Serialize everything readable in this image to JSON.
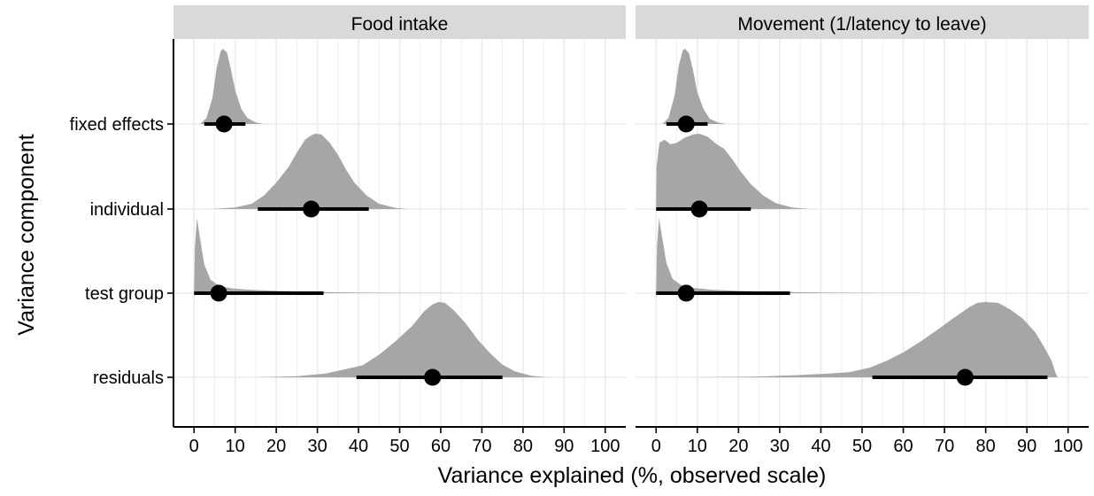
{
  "chart_data": {
    "type": "ridgeline",
    "xlabel": "Variance explained (%, observed scale)",
    "ylabel": "Variance component",
    "xlim": [
      -5,
      105
    ],
    "x_ticks": [
      0,
      10,
      20,
      30,
      40,
      50,
      60,
      70,
      80,
      90,
      100
    ],
    "x_tick_labels": [
      "0",
      "10",
      "20",
      "30",
      "40",
      "50",
      "60",
      "70",
      "80",
      "90",
      "100"
    ],
    "categories": [
      "fixed effects",
      "individual",
      "test group",
      "residuals"
    ],
    "grid": true,
    "colors": {
      "density": "#a6a6a6",
      "strip": "#d9d9d9",
      "point": "#000000",
      "grid": "#ebebeb"
    },
    "panels": [
      {
        "title": "Food intake",
        "components": [
          {
            "name": "fixed effects",
            "estimate": 7.3,
            "ci": [
              2.5,
              12.5
            ],
            "density": [
              [
                1.5,
                0
              ],
              [
                3,
                0.08
              ],
              [
                4.5,
                0.35
              ],
              [
                5.5,
                0.75
              ],
              [
                6.5,
                0.97
              ],
              [
                7,
                1
              ],
              [
                8,
                0.95
              ],
              [
                9,
                0.72
              ],
              [
                10,
                0.45
              ],
              [
                11.5,
                0.2
              ],
              [
                13,
                0.08
              ],
              [
                15,
                0.02
              ],
              [
                17,
                0
              ]
            ]
          },
          {
            "name": "individual",
            "estimate": 28.5,
            "ci": [
              15.5,
              42.5
            ],
            "density": [
              [
                4,
                0
              ],
              [
                10,
                0.02
              ],
              [
                14,
                0.07
              ],
              [
                17,
                0.18
              ],
              [
                20,
                0.35
              ],
              [
                23,
                0.56
              ],
              [
                25,
                0.75
              ],
              [
                27,
                0.92
              ],
              [
                28.5,
                0.98
              ],
              [
                29.5,
                1
              ],
              [
                31,
                0.99
              ],
              [
                33,
                0.88
              ],
              [
                35,
                0.72
              ],
              [
                37,
                0.52
              ],
              [
                39,
                0.35
              ],
              [
                42,
                0.18
              ],
              [
                45,
                0.07
              ],
              [
                49,
                0.015
              ],
              [
                52,
                0
              ]
            ]
          },
          {
            "name": "test group",
            "estimate": 6,
            "ci": [
              0,
              31.5
            ],
            "density": [
              [
                0,
                0
              ],
              [
                0.2,
                0.6
              ],
              [
                0.7,
                1
              ],
              [
                1.3,
                0.78
              ],
              [
                2.5,
                0.38
              ],
              [
                4,
                0.18
              ],
              [
                6,
                0.1
              ],
              [
                9,
                0.065
              ],
              [
                14,
                0.045
              ],
              [
                20,
                0.03
              ],
              [
                30,
                0.015
              ],
              [
                40,
                0.007
              ],
              [
                55,
                0.003
              ],
              [
                65,
                0
              ]
            ]
          },
          {
            "name": "residuals",
            "estimate": 58,
            "ci": [
              39.5,
              75
            ],
            "density": [
              [
                15,
                0
              ],
              [
                25,
                0.015
              ],
              [
                32,
                0.05
              ],
              [
                37,
                0.11
              ],
              [
                41,
                0.16
              ],
              [
                45,
                0.3
              ],
              [
                49,
                0.48
              ],
              [
                53,
                0.68
              ],
              [
                56,
                0.88
              ],
              [
                58,
                0.97
              ],
              [
                59.5,
                1
              ],
              [
                61,
                0.99
              ],
              [
                63,
                0.9
              ],
              [
                66,
                0.72
              ],
              [
                69,
                0.5
              ],
              [
                72,
                0.32
              ],
              [
                75,
                0.17
              ],
              [
                78,
                0.08
              ],
              [
                82,
                0.02
              ],
              [
                86,
                0
              ]
            ]
          }
        ]
      },
      {
        "title": "Movement (1/latency to leave)",
        "components": [
          {
            "name": "fixed effects",
            "estimate": 7.3,
            "ci": [
              2.5,
              12.5
            ],
            "density": [
              [
                1.5,
                0
              ],
              [
                3,
                0.08
              ],
              [
                4.5,
                0.38
              ],
              [
                5.5,
                0.78
              ],
              [
                6.5,
                0.98
              ],
              [
                7,
                1
              ],
              [
                8,
                0.94
              ],
              [
                9,
                0.7
              ],
              [
                10,
                0.42
              ],
              [
                11.5,
                0.2
              ],
              [
                13,
                0.07
              ],
              [
                15,
                0.02
              ],
              [
                17,
                0
              ]
            ]
          },
          {
            "name": "individual",
            "estimate": 10.5,
            "ci": [
              0,
              23
            ],
            "density": [
              [
                0,
                0
              ],
              [
                0.1,
                0.55
              ],
              [
                0.8,
                0.88
              ],
              [
                2,
                0.92
              ],
              [
                3.5,
                0.86
              ],
              [
                5,
                0.88
              ],
              [
                7,
                0.95
              ],
              [
                9,
                0.99
              ],
              [
                10.5,
                1
              ],
              [
                12.5,
                0.96
              ],
              [
                14.5,
                0.87
              ],
              [
                16.5,
                0.8
              ],
              [
                18.5,
                0.66
              ],
              [
                20.5,
                0.5
              ],
              [
                23,
                0.33
              ],
              [
                26,
                0.18
              ],
              [
                29,
                0.08
              ],
              [
                33,
                0.02
              ],
              [
                37,
                0
              ]
            ]
          },
          {
            "name": "test group",
            "estimate": 7.3,
            "ci": [
              0,
              32.5
            ],
            "density": [
              [
                0,
                0
              ],
              [
                0.2,
                0.6
              ],
              [
                0.7,
                1
              ],
              [
                1.3,
                0.8
              ],
              [
                2.5,
                0.4
              ],
              [
                4,
                0.19
              ],
              [
                6,
                0.11
              ],
              [
                9,
                0.07
              ],
              [
                14,
                0.045
              ],
              [
                20,
                0.03
              ],
              [
                30,
                0.015
              ],
              [
                40,
                0.008
              ],
              [
                55,
                0.003
              ],
              [
                70,
                0
              ]
            ]
          },
          {
            "name": "residuals",
            "estimate": 75,
            "ci": [
              52.5,
              95
            ],
            "density": [
              [
                10,
                0
              ],
              [
                25,
                0.01
              ],
              [
                35,
                0.03
              ],
              [
                42,
                0.05
              ],
              [
                47,
                0.07
              ],
              [
                52,
                0.13
              ],
              [
                56,
                0.22
              ],
              [
                60,
                0.33
              ],
              [
                64,
                0.47
              ],
              [
                68,
                0.62
              ],
              [
                72,
                0.78
              ],
              [
                76,
                0.93
              ],
              [
                78,
                0.99
              ],
              [
                80,
                1
              ],
              [
                83,
                0.99
              ],
              [
                86,
                0.9
              ],
              [
                89,
                0.78
              ],
              [
                92,
                0.6
              ],
              [
                94,
                0.42
              ],
              [
                96,
                0.22
              ],
              [
                97,
                0.05
              ],
              [
                97.5,
                0
              ]
            ]
          }
        ]
      }
    ]
  }
}
